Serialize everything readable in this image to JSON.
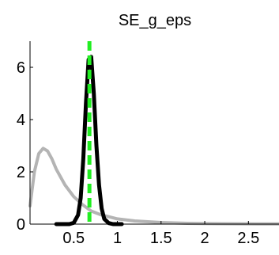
{
  "chart_data": {
    "type": "line",
    "title": "SE_g_eps",
    "xlabel": "",
    "ylabel": "",
    "xlim": [
      0,
      2.85
    ],
    "ylim": [
      0,
      7
    ],
    "xticks": [
      0.5,
      1,
      1.5,
      2,
      2.5
    ],
    "xtick_labels": [
      "0.5",
      "1",
      "1.5",
      "2",
      "2.5"
    ],
    "yticks": [
      0,
      2,
      4,
      6
    ],
    "ytick_labels": [
      "0",
      "2",
      "4",
      "6"
    ],
    "grid": false,
    "legend": "none",
    "series": [
      {
        "style": "prior",
        "color": "#b4b4b4",
        "x": [
          0.0,
          0.05,
          0.1,
          0.15,
          0.2,
          0.25,
          0.3,
          0.35,
          0.4,
          0.5,
          0.6,
          0.7,
          0.8,
          1.0,
          1.2,
          1.5,
          1.8,
          2.2,
          2.6,
          2.85
        ],
        "y": [
          0.7,
          2.0,
          2.7,
          2.9,
          2.8,
          2.5,
          2.1,
          1.8,
          1.5,
          1.05,
          0.75,
          0.5,
          0.37,
          0.2,
          0.12,
          0.06,
          0.03,
          0.015,
          0.01,
          0.005
        ]
      },
      {
        "style": "posterior",
        "color": "#000000",
        "x": [
          0.3,
          0.45,
          0.5,
          0.55,
          0.58,
          0.61,
          0.64,
          0.67,
          0.7,
          0.73,
          0.76,
          0.79,
          0.82,
          0.85,
          0.9,
          0.95,
          1.05
        ],
        "y": [
          0.0,
          0.0,
          0.05,
          0.35,
          1.0,
          2.5,
          4.6,
          6.3,
          6.4,
          5.0,
          3.0,
          1.5,
          0.6,
          0.2,
          0.04,
          0.0,
          0.0
        ]
      }
    ],
    "reference_line": {
      "x": 0.68,
      "color": "#22ee22",
      "style": "dashed"
    }
  }
}
